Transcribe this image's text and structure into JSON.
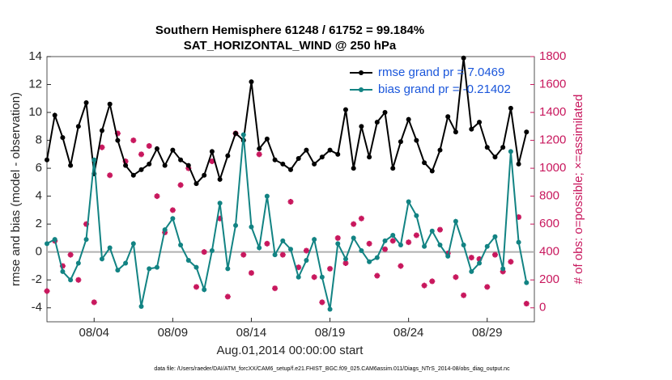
{
  "chart_data": {
    "type": "line",
    "title": "Southern Hemisphere 61248 / 61752 = 99.184%",
    "subtitle": "SAT_HORIZONTAL_WIND @ 250 hPa",
    "xlabel": "Aug.01,2014 00:00:00 start",
    "ylabel": "rmse and bias (model - observation)",
    "y2label": "# of obs: o=possible; ×=assimilated",
    "footnote": "data file: /Users/raeder/DAI/ATM_forcXX/CAM6_setup/f.e21.FHIST_BGC.f09_025.CAM6assim.011/Diags_NTrS_2014-08/obs_diag_output.nc",
    "x": [
      0,
      0.5,
      1,
      1.5,
      2,
      2.5,
      3,
      3.5,
      4,
      4.5,
      5,
      5.5,
      6,
      6.5,
      7,
      7.5,
      8,
      8.5,
      9,
      9.5,
      10,
      10.5,
      11,
      11.5,
      12,
      12.5,
      13,
      13.5,
      14,
      14.5,
      15,
      15.5,
      16,
      16.5,
      17,
      17.5,
      18,
      18.5,
      19,
      19.5,
      20,
      20.5,
      21,
      21.5,
      22,
      22.5,
      23,
      23.5,
      24,
      24.5,
      25,
      25.5,
      26,
      26.5,
      27,
      27.5,
      28,
      28.5,
      29,
      29.5,
      30,
      30.5
    ],
    "xlim": [
      0,
      31
    ],
    "xticks": [
      {
        "value": 3,
        "label": "08/04"
      },
      {
        "value": 8,
        "label": "08/09"
      },
      {
        "value": 13,
        "label": "08/14"
      },
      {
        "value": 18,
        "label": "08/19"
      },
      {
        "value": 23,
        "label": "08/24"
      },
      {
        "value": 28,
        "label": "08/29"
      }
    ],
    "ylim": [
      -5,
      14
    ],
    "yticks": [
      -4,
      -2,
      0,
      2,
      4,
      6,
      8,
      10,
      12,
      14
    ],
    "y2lim": [
      -100,
      1800
    ],
    "y2ticks": [
      0,
      200,
      400,
      600,
      800,
      1000,
      1200,
      1400,
      1600,
      1800
    ],
    "y2color": "#c8175d",
    "legend": "upper right",
    "series": [
      {
        "name": "rmse grand pr = 7.0469",
        "color": "#000000",
        "marker": "dot",
        "values": [
          6.6,
          9.8,
          8.2,
          6.2,
          9.0,
          10.7,
          5.6,
          8.7,
          10.6,
          8.0,
          6.2,
          5.5,
          5.9,
          6.3,
          7.4,
          6.2,
          7.3,
          6.6,
          6.2,
          4.9,
          5.5,
          7.2,
          5.2,
          6.9,
          8.5,
          8.0,
          12.2,
          7.4,
          8.1,
          6.6,
          6.3,
          5.9,
          6.7,
          7.3,
          6.3,
          6.8,
          7.3,
          7.0,
          10.2,
          6.0,
          9.0,
          6.8,
          9.3,
          10.0,
          6.0,
          7.9,
          9.5,
          8.0,
          6.4,
          5.8,
          7.3,
          9.7,
          8.6,
          13.9,
          8.8,
          9.3,
          7.5,
          6.8,
          7.5,
          10.3,
          6.3,
          8.6
        ]
      },
      {
        "name": "bias grand pr = -0.21402",
        "color": "#128383",
        "marker": "dot",
        "values": [
          0.6,
          0.9,
          -1.4,
          -2.0,
          -0.8,
          0.9,
          6.6,
          -0.5,
          0.3,
          -1.3,
          -0.8,
          0.6,
          -3.9,
          -1.2,
          -1.1,
          1.6,
          2.4,
          0.5,
          -0.6,
          -1.1,
          -2.7,
          0.1,
          3.5,
          -1.2,
          1.9,
          8.4,
          1.8,
          0.3,
          4.0,
          -0.2,
          0.8,
          0.2,
          -1.8,
          -0.6,
          0.9,
          -1.8,
          -4.1,
          0.6,
          -0.5,
          1.0,
          0.1,
          -0.7,
          -0.4,
          0.8,
          1.2,
          0.5,
          3.6,
          2.6,
          0.4,
          1.5,
          0.5,
          -0.3,
          2.2,
          0.5,
          -1.4,
          -0.8,
          0.4,
          1.1,
          -1.2,
          7.2,
          0.7,
          -2.2
        ]
      },
      {
        "color": "#c8175d",
        "marker": "asterisk",
        "axis": "y2",
        "values": [
          120,
          480,
          300,
          380,
          200,
          600,
          40,
          1150,
          950,
          1250,
          1050,
          1200,
          1100,
          1160,
          800,
          540,
          700,
          880,
          1000,
          150,
          400,
          1050,
          640,
          80,
          1250,
          380,
          250,
          1100,
          460,
          140,
          380,
          760,
          290,
          410,
          220,
          40,
          280,
          500,
          320,
          600,
          640,
          460,
          230,
          420,
          480,
          300,
          470,
          520,
          160,
          190,
          560,
          390,
          220,
          90,
          360,
          350,
          150,
          380,
          260,
          330,
          650,
          30
        ]
      }
    ]
  }
}
